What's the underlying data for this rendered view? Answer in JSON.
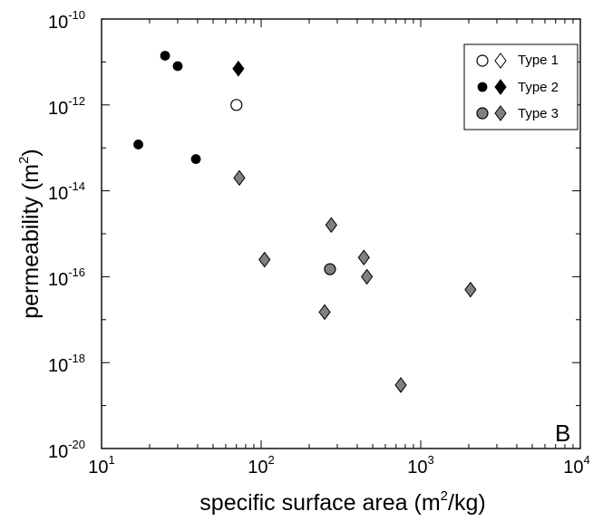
{
  "chart_data": {
    "type": "scatter",
    "panel_label": "B",
    "x_axis": {
      "label_main": "specific surface area (m",
      "label_sup": "2",
      "label_end": "/kg)",
      "scale": "log",
      "range": [
        10,
        10000
      ],
      "tick_bases": [
        "10",
        "10",
        "10",
        "10"
      ],
      "tick_exponents": [
        "1",
        "2",
        "3",
        "4"
      ],
      "tick_values": [
        10,
        100,
        1000,
        10000
      ]
    },
    "y_axis": {
      "label_main": "permeability (m",
      "label_sup": "2",
      "label_end": ")",
      "scale": "log",
      "range": [
        1e-20,
        1e-10
      ],
      "tick_bases": [
        "10",
        "10",
        "10",
        "10",
        "10",
        "10"
      ],
      "tick_exponents": [
        "-20",
        "-18",
        "-16",
        "-14",
        "-12",
        "-10"
      ],
      "tick_values": [
        1e-20,
        1e-18,
        1e-16,
        1e-14,
        1e-12,
        1e-10
      ]
    },
    "legend": {
      "position": "top-right",
      "entries": [
        {
          "label": "Type 1",
          "circle_fill": "#ffffff",
          "diamond_fill": "#ffffff"
        },
        {
          "label": "Type 2",
          "circle_fill": "#000000",
          "diamond_fill": "#000000"
        },
        {
          "label": "Type 3",
          "circle_fill": "#808080",
          "diamond_fill": "#808080"
        }
      ]
    },
    "series": [
      {
        "name": "Type 1",
        "marker": "circle",
        "fill": "#ffffff",
        "points": [
          {
            "x": 70,
            "y": 1e-12
          }
        ]
      },
      {
        "name": "Type 1",
        "marker": "diamond",
        "fill": "#ffffff",
        "points": []
      },
      {
        "name": "Type 2",
        "marker": "dot",
        "fill": "#000000",
        "points": [
          {
            "x": 17,
            "y": 1.2e-13
          },
          {
            "x": 25,
            "y": 1.4e-11
          },
          {
            "x": 30,
            "y": 8e-12
          },
          {
            "x": 39,
            "y": 5.5e-14
          }
        ]
      },
      {
        "name": "Type 2",
        "marker": "diamond",
        "fill": "#000000",
        "points": [
          {
            "x": 72,
            "y": 7e-12
          }
        ]
      },
      {
        "name": "Type 3",
        "marker": "circle",
        "fill": "#808080",
        "points": [
          {
            "x": 270,
            "y": 1.5e-16
          }
        ]
      },
      {
        "name": "Type 3",
        "marker": "diamond",
        "fill": "#808080",
        "points": [
          {
            "x": 73,
            "y": 2e-14
          },
          {
            "x": 105,
            "y": 2.5e-16
          },
          {
            "x": 250,
            "y": 1.5e-17
          },
          {
            "x": 275,
            "y": 1.6e-15
          },
          {
            "x": 440,
            "y": 2.8e-16
          },
          {
            "x": 460,
            "y": 1e-16
          },
          {
            "x": 750,
            "y": 3e-19
          },
          {
            "x": 2050,
            "y": 5e-17
          }
        ]
      }
    ]
  }
}
